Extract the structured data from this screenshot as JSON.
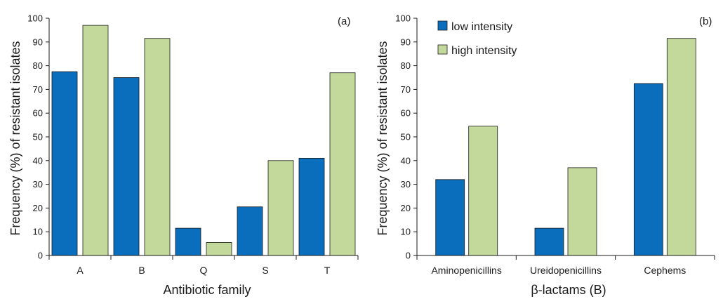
{
  "colors": {
    "low": "#0a6ebd",
    "high": "#c3d89b",
    "bar_stroke": "#1a1a1a",
    "axis": "#1a1a1a"
  },
  "chart_data": [
    {
      "type": "bar",
      "panel_label": "(a)",
      "xlabel": "Antibiotic family",
      "ylabel": "Frequency (%) of resistant isolates",
      "ylim": [
        0,
        100
      ],
      "yticks": [
        0,
        10,
        20,
        30,
        40,
        50,
        60,
        70,
        80,
        90,
        100
      ],
      "grid": false,
      "categories": [
        "A",
        "B",
        "Q",
        "S",
        "T"
      ],
      "series": [
        {
          "key": "low",
          "values": [
            77.5,
            75,
            11.5,
            20.5,
            41
          ]
        },
        {
          "key": "high",
          "values": [
            97,
            91.5,
            5.5,
            40,
            77
          ]
        }
      ]
    },
    {
      "type": "bar",
      "panel_label": "(b)",
      "xlabel": "β-lactams (B)",
      "ylabel": "Frequency (%) of resistant isolates",
      "ylim": [
        0,
        100
      ],
      "yticks": [
        0,
        10,
        20,
        30,
        40,
        50,
        60,
        70,
        80,
        90,
        100
      ],
      "grid": false,
      "legend_position": "top-left",
      "categories": [
        "Aminopenicillins",
        "Ureidopenicillins",
        "Cephems"
      ],
      "series": [
        {
          "key": "low",
          "name": "low intensity",
          "values": [
            32,
            11.5,
            72.5
          ]
        },
        {
          "key": "high",
          "name": "high intensity",
          "values": [
            54.5,
            37,
            91.5
          ]
        }
      ]
    }
  ]
}
